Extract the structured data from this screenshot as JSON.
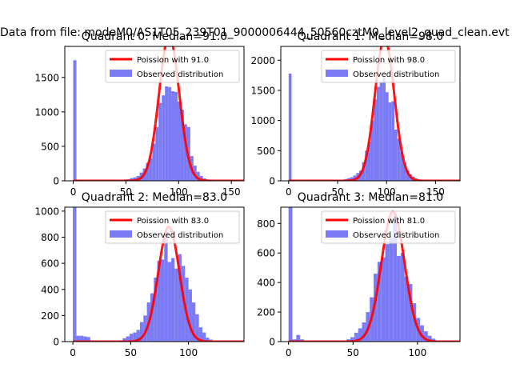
{
  "figure": {
    "suptitle": "Data from file: modeM0/AS1T05_239T01_9000006444_50560cztM0_level2_quad_clean.evt"
  },
  "colors": {
    "hist": "#7b7bf6",
    "line": "#ff0000",
    "axis": "#000000"
  },
  "chart_data": [
    {
      "type": "bar+line",
      "title": "Quadrant 0: Median=91.0",
      "xlim": [
        -8,
        162
      ],
      "ylim": [
        0,
        1950
      ],
      "xticks": [
        0,
        50,
        100,
        150
      ],
      "yticks": [
        0,
        500,
        1000,
        1500
      ],
      "legend": {
        "placement": "top-right",
        "line_label": "Poission with 91.0",
        "hist_label": "Observed distribution"
      },
      "poisson_mean": 91.0,
      "curve_peak": 2100,
      "bins": [
        {
          "x0": 0,
          "x1": 3,
          "v": 1750
        },
        {
          "x0": 3,
          "x1": 6,
          "v": 15
        },
        {
          "x0": 6,
          "x1": 9,
          "v": 8
        },
        {
          "x0": 45,
          "x1": 48,
          "v": 10
        },
        {
          "x0": 48,
          "x1": 51,
          "v": 20
        },
        {
          "x0": 51,
          "x1": 54,
          "v": 25
        },
        {
          "x0": 54,
          "x1": 57,
          "v": 40
        },
        {
          "x0": 57,
          "x1": 60,
          "v": 50
        },
        {
          "x0": 60,
          "x1": 63,
          "v": 70
        },
        {
          "x0": 63,
          "x1": 66,
          "v": 120
        },
        {
          "x0": 66,
          "x1": 69,
          "v": 180
        },
        {
          "x0": 69,
          "x1": 72,
          "v": 260
        },
        {
          "x0": 72,
          "x1": 75,
          "v": 330
        },
        {
          "x0": 75,
          "x1": 78,
          "v": 540
        },
        {
          "x0": 78,
          "x1": 81,
          "v": 780
        },
        {
          "x0": 81,
          "x1": 84,
          "v": 1130
        },
        {
          "x0": 84,
          "x1": 87,
          "v": 1240
        },
        {
          "x0": 87,
          "x1": 90,
          "v": 1370
        },
        {
          "x0": 90,
          "x1": 93,
          "v": 1360
        },
        {
          "x0": 93,
          "x1": 96,
          "v": 1300
        },
        {
          "x0": 96,
          "x1": 99,
          "v": 1290
        },
        {
          "x0": 99,
          "x1": 102,
          "v": 1150
        },
        {
          "x0": 102,
          "x1": 105,
          "v": 1030
        },
        {
          "x0": 105,
          "x1": 108,
          "v": 820
        },
        {
          "x0": 108,
          "x1": 111,
          "v": 780
        },
        {
          "x0": 111,
          "x1": 114,
          "v": 360
        },
        {
          "x0": 114,
          "x1": 117,
          "v": 220
        },
        {
          "x0": 117,
          "x1": 120,
          "v": 130
        },
        {
          "x0": 120,
          "x1": 123,
          "v": 70
        },
        {
          "x0": 123,
          "x1": 126,
          "v": 35
        },
        {
          "x0": 126,
          "x1": 129,
          "v": 20
        },
        {
          "x0": 129,
          "x1": 132,
          "v": 10
        }
      ]
    },
    {
      "type": "bar+line",
      "title": "Quadrant 1: Median=98.0",
      "xlim": [
        -8,
        175
      ],
      "ylim": [
        0,
        2230
      ],
      "xticks": [
        0,
        50,
        100,
        150
      ],
      "yticks": [
        0,
        500,
        1000,
        1500,
        2000
      ],
      "legend": {
        "placement": "top-right",
        "line_label": "Poission with 98.0",
        "hist_label": "Observed distribution"
      },
      "poisson_mean": 98.0,
      "curve_peak": 2360,
      "bins": [
        {
          "x0": 0,
          "x1": 3,
          "v": 1780
        },
        {
          "x0": 3,
          "x1": 6,
          "v": 15
        },
        {
          "x0": 54,
          "x1": 57,
          "v": 20
        },
        {
          "x0": 57,
          "x1": 60,
          "v": 30
        },
        {
          "x0": 60,
          "x1": 63,
          "v": 45
        },
        {
          "x0": 63,
          "x1": 66,
          "v": 60
        },
        {
          "x0": 66,
          "x1": 69,
          "v": 90
        },
        {
          "x0": 69,
          "x1": 72,
          "v": 130
        },
        {
          "x0": 72,
          "x1": 75,
          "v": 170
        },
        {
          "x0": 75,
          "x1": 78,
          "v": 310
        },
        {
          "x0": 78,
          "x1": 81,
          "v": 500
        },
        {
          "x0": 81,
          "x1": 84,
          "v": 650
        },
        {
          "x0": 84,
          "x1": 87,
          "v": 1000
        },
        {
          "x0": 87,
          "x1": 90,
          "v": 1350
        },
        {
          "x0": 90,
          "x1": 93,
          "v": 1560
        },
        {
          "x0": 93,
          "x1": 96,
          "v": 1640
        },
        {
          "x0": 96,
          "x1": 99,
          "v": 1720
        },
        {
          "x0": 99,
          "x1": 102,
          "v": 1470
        },
        {
          "x0": 102,
          "x1": 105,
          "v": 1300
        },
        {
          "x0": 105,
          "x1": 108,
          "v": 1320
        },
        {
          "x0": 108,
          "x1": 111,
          "v": 850
        },
        {
          "x0": 111,
          "x1": 114,
          "v": 700
        },
        {
          "x0": 114,
          "x1": 117,
          "v": 480
        },
        {
          "x0": 117,
          "x1": 120,
          "v": 290
        },
        {
          "x0": 120,
          "x1": 123,
          "v": 180
        },
        {
          "x0": 123,
          "x1": 126,
          "v": 110
        },
        {
          "x0": 126,
          "x1": 129,
          "v": 70
        },
        {
          "x0": 129,
          "x1": 132,
          "v": 40
        },
        {
          "x0": 132,
          "x1": 135,
          "v": 20
        }
      ]
    },
    {
      "type": "bar+line",
      "title": "Quadrant 2: Median=83.0",
      "xlim": [
        -7,
        148
      ],
      "ylim": [
        0,
        1030
      ],
      "xticks": [
        0,
        50,
        100
      ],
      "yticks": [
        0,
        200,
        400,
        600,
        800,
        1000
      ],
      "legend": {
        "placement": "top-right",
        "line_label": "Poission with 83.0",
        "hist_label": "Observed distribution"
      },
      "poisson_mean": 83.0,
      "curve_peak": 880,
      "bins": [
        {
          "x0": 0,
          "x1": 3,
          "v": 1030
        },
        {
          "x0": 3,
          "x1": 6,
          "v": 45
        },
        {
          "x0": 6,
          "x1": 9,
          "v": 45
        },
        {
          "x0": 9,
          "x1": 12,
          "v": 40
        },
        {
          "x0": 12,
          "x1": 15,
          "v": 35
        },
        {
          "x0": 15,
          "x1": 18,
          "v": 10
        },
        {
          "x0": 18,
          "x1": 21,
          "v": 5
        },
        {
          "x0": 40,
          "x1": 43,
          "v": 10
        },
        {
          "x0": 43,
          "x1": 46,
          "v": 25
        },
        {
          "x0": 46,
          "x1": 49,
          "v": 40
        },
        {
          "x0": 49,
          "x1": 52,
          "v": 60
        },
        {
          "x0": 52,
          "x1": 55,
          "v": 70
        },
        {
          "x0": 55,
          "x1": 58,
          "v": 90
        },
        {
          "x0": 58,
          "x1": 61,
          "v": 150
        },
        {
          "x0": 61,
          "x1": 64,
          "v": 200
        },
        {
          "x0": 64,
          "x1": 67,
          "v": 300
        },
        {
          "x0": 67,
          "x1": 70,
          "v": 370
        },
        {
          "x0": 70,
          "x1": 73,
          "v": 490
        },
        {
          "x0": 73,
          "x1": 76,
          "v": 620
        },
        {
          "x0": 76,
          "x1": 79,
          "v": 630
        },
        {
          "x0": 79,
          "x1": 82,
          "v": 840
        },
        {
          "x0": 82,
          "x1": 85,
          "v": 610
        },
        {
          "x0": 85,
          "x1": 88,
          "v": 640
        },
        {
          "x0": 88,
          "x1": 91,
          "v": 560
        },
        {
          "x0": 91,
          "x1": 94,
          "v": 670
        },
        {
          "x0": 94,
          "x1": 97,
          "v": 580
        },
        {
          "x0": 97,
          "x1": 100,
          "v": 490
        },
        {
          "x0": 100,
          "x1": 103,
          "v": 400
        },
        {
          "x0": 103,
          "x1": 106,
          "v": 300
        },
        {
          "x0": 106,
          "x1": 109,
          "v": 210
        },
        {
          "x0": 109,
          "x1": 112,
          "v": 110
        },
        {
          "x0": 112,
          "x1": 115,
          "v": 70
        },
        {
          "x0": 115,
          "x1": 118,
          "v": 30
        },
        {
          "x0": 118,
          "x1": 121,
          "v": 15
        }
      ]
    },
    {
      "type": "bar+line",
      "title": "Quadrant 3: Median=81.0",
      "xlim": [
        -6,
        133
      ],
      "ylim": [
        0,
        910
      ],
      "xticks": [
        0,
        50,
        100
      ],
      "yticks": [
        0,
        200,
        400,
        600,
        800
      ],
      "legend": {
        "placement": "top-right",
        "line_label": "Poission with 81.0",
        "hist_label": "Observed distribution"
      },
      "poisson_mean": 81.0,
      "curve_peak": 880,
      "bins": [
        {
          "x0": 0,
          "x1": 3,
          "v": 910
        },
        {
          "x0": 3,
          "x1": 6,
          "v": 15
        },
        {
          "x0": 6,
          "x1": 9,
          "v": 45
        },
        {
          "x0": 9,
          "x1": 12,
          "v": 15
        },
        {
          "x0": 45,
          "x1": 48,
          "v": 15
        },
        {
          "x0": 48,
          "x1": 51,
          "v": 30
        },
        {
          "x0": 51,
          "x1": 54,
          "v": 60
        },
        {
          "x0": 54,
          "x1": 57,
          "v": 90
        },
        {
          "x0": 57,
          "x1": 60,
          "v": 130
        },
        {
          "x0": 60,
          "x1": 63,
          "v": 200
        },
        {
          "x0": 63,
          "x1": 66,
          "v": 300
        },
        {
          "x0": 66,
          "x1": 69,
          "v": 460
        },
        {
          "x0": 69,
          "x1": 72,
          "v": 540
        },
        {
          "x0": 72,
          "x1": 75,
          "v": 570
        },
        {
          "x0": 75,
          "x1": 78,
          "v": 660
        },
        {
          "x0": 78,
          "x1": 81,
          "v": 700
        },
        {
          "x0": 81,
          "x1": 84,
          "v": 860
        },
        {
          "x0": 84,
          "x1": 87,
          "v": 580
        },
        {
          "x0": 87,
          "x1": 90,
          "v": 600
        },
        {
          "x0": 90,
          "x1": 93,
          "v": 440
        },
        {
          "x0": 93,
          "x1": 96,
          "v": 390
        },
        {
          "x0": 96,
          "x1": 99,
          "v": 260
        },
        {
          "x0": 99,
          "x1": 102,
          "v": 160
        },
        {
          "x0": 102,
          "x1": 105,
          "v": 110
        },
        {
          "x0": 105,
          "x1": 108,
          "v": 70
        },
        {
          "x0": 108,
          "x1": 111,
          "v": 40
        },
        {
          "x0": 111,
          "x1": 114,
          "v": 20
        }
      ]
    }
  ]
}
